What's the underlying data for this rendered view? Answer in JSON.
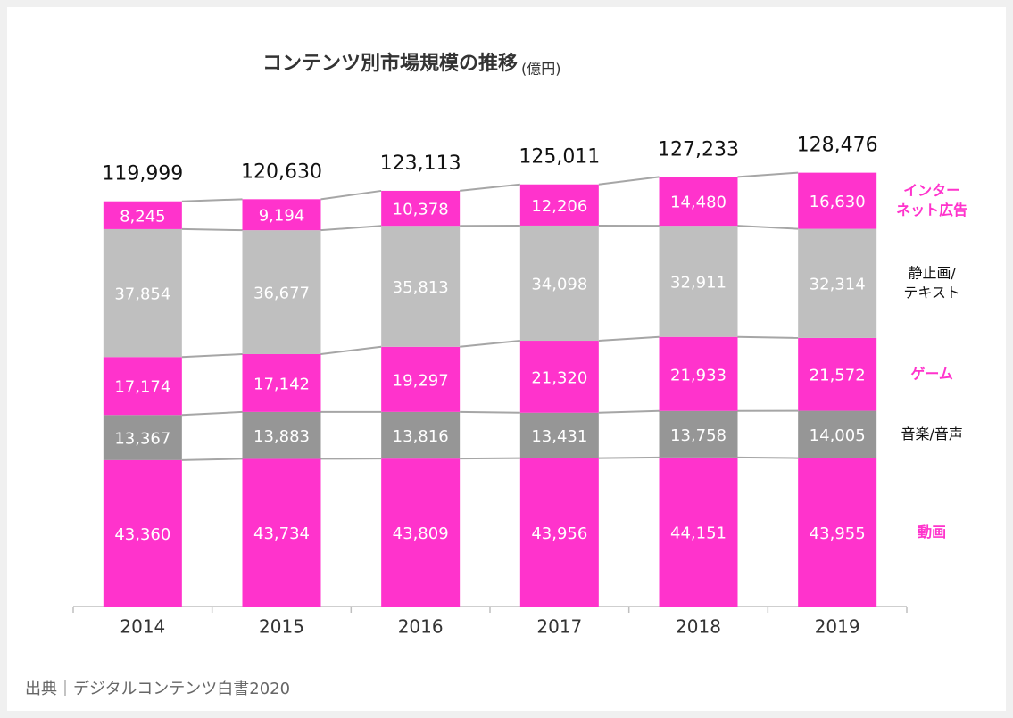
{
  "chart_data": {
    "type": "stacked_bar",
    "title": "コンテンツ別市場規模の推移",
    "subtitle": "(億円)",
    "source": "出典｜デジタルコンテンツ白書2020",
    "categories": [
      "2014",
      "2015",
      "2016",
      "2017",
      "2018",
      "2019"
    ],
    "ylim": [
      0,
      140000
    ],
    "totals": [
      119999,
      120630,
      123113,
      125011,
      127233,
      128476
    ],
    "total_labels": [
      "119,999",
      "120,630",
      "123,113",
      "125,011",
      "127,233",
      "128,476"
    ],
    "series": [
      {
        "name": "動画",
        "color": "#ff33cc",
        "values": [
          43360,
          43734,
          43809,
          43956,
          44151,
          43955
        ],
        "value_labels": [
          "43,360",
          "43,734",
          "43,809",
          "43,956",
          "44,151",
          "43,955"
        ]
      },
      {
        "name": "音楽/音声",
        "color": "#969696",
        "values": [
          13367,
          13883,
          13816,
          13431,
          13758,
          14005
        ],
        "value_labels": [
          "13,367",
          "13,883",
          "13,816",
          "13,431",
          "13,758",
          "14,005"
        ]
      },
      {
        "name": "ゲーム",
        "color": "#ff33cc",
        "values": [
          17174,
          17142,
          19297,
          21320,
          21933,
          21572
        ],
        "value_labels": [
          "17,174",
          "17,142",
          "19,297",
          "21,320",
          "21,933",
          "21,572"
        ]
      },
      {
        "name": "静止画/\nテキスト",
        "color": "#bfbfbf",
        "values": [
          37854,
          36677,
          35813,
          34098,
          32911,
          32314
        ],
        "value_labels": [
          "37,854",
          "36,677",
          "35,813",
          "34,098",
          "32,911",
          "32,314"
        ]
      },
      {
        "name": "インター\nネット広告",
        "color": "#ff33cc",
        "values": [
          8245,
          9194,
          10378,
          12206,
          14480,
          16630
        ],
        "value_labels": [
          "8,245",
          "9,194",
          "10,378",
          "12,206",
          "14,480",
          "16,630"
        ]
      }
    ]
  }
}
